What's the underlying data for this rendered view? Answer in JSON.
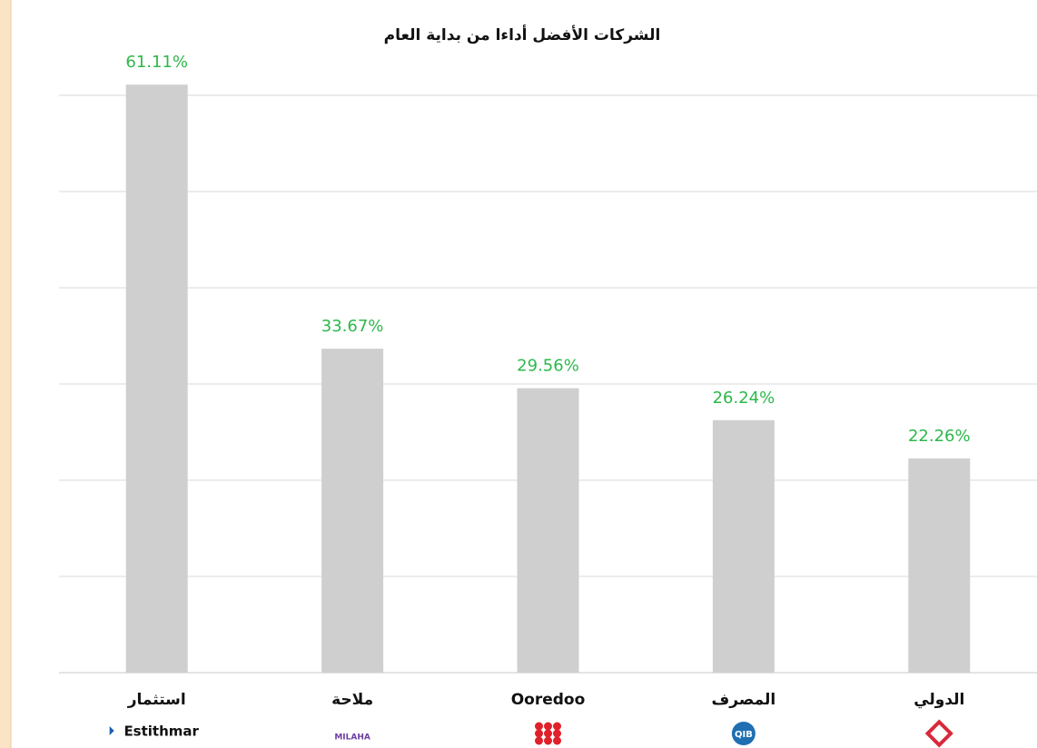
{
  "chart_data": {
    "type": "bar",
    "title": "الشركات الأفضل أداءا من بداية العام",
    "categories": [
      "استثمار",
      "ملاحة",
      "Ooredoo",
      "المصرف",
      "الدولي"
    ],
    "logo_texts": [
      "Estithmar",
      "MILAHA",
      null,
      "QIB",
      null
    ],
    "values": [
      61.11,
      33.67,
      29.56,
      26.24,
      22.26
    ],
    "value_labels": [
      "61.11%",
      "33.67%",
      "29.56%",
      "26.24%",
      "22.26%"
    ],
    "color": "#d0cfcf",
    "label_color": "#2db84b",
    "ylim": [
      0,
      70
    ],
    "yticks": [
      0,
      10,
      20,
      30,
      40,
      50,
      60
    ],
    "grid": true
  }
}
